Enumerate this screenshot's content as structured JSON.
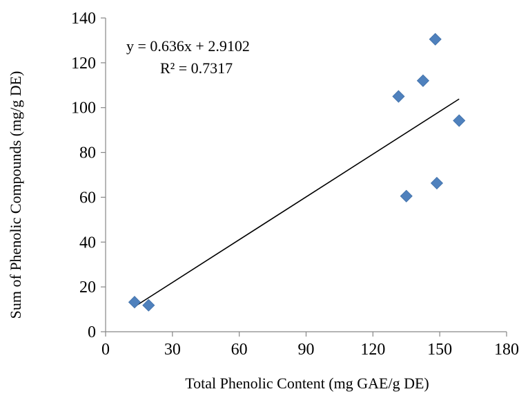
{
  "chart_data": {
    "type": "scatter",
    "xlabel": "Total Phenolic Content (mg GAE/g DE)",
    "ylabel": "Sum of Phenolic Compounds (mg/g DE)",
    "xlim": [
      0,
      180
    ],
    "ylim": [
      0,
      140
    ],
    "xticks": [
      "0",
      "30",
      "60",
      "90",
      "120",
      "150",
      "180"
    ],
    "yticks": [
      "0",
      "20",
      "40",
      "60",
      "80",
      "100",
      "120",
      "140"
    ],
    "grid": false,
    "legend": false,
    "marker": "diamond",
    "color": "#4F81BD",
    "trendline_color": "#000000",
    "points": [
      {
        "x": 13.0,
        "y": 13.2
      },
      {
        "x": 19.3,
        "y": 11.8
      },
      {
        "x": 131.5,
        "y": 105.0
      },
      {
        "x": 135.0,
        "y": 60.5
      },
      {
        "x": 142.5,
        "y": 112.0
      },
      {
        "x": 148.0,
        "y": 130.5
      },
      {
        "x": 148.7,
        "y": 66.3
      },
      {
        "x": 158.7,
        "y": 94.2
      }
    ],
    "trendline": {
      "slope": 0.636,
      "intercept": 2.9102,
      "x_range": [
        13.0,
        158.7
      ],
      "equation_label": "y = 0.636x + 2.9102",
      "r2_label": "R² = 0.7317"
    }
  }
}
